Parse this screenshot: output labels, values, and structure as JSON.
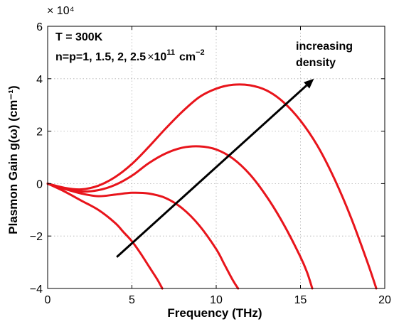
{
  "chart_data": {
    "type": "line",
    "xlabel": "Frequency (THz)",
    "ylabel": "Plasmon Gain g(ω) (cm⁻¹)",
    "y_multiplier": "× 10⁴",
    "xlim": [
      0,
      20
    ],
    "ylim": [
      -4,
      6
    ],
    "x_ticks": [
      0,
      5,
      10,
      15,
      20
    ],
    "y_ticks": [
      -4,
      -2,
      0,
      2,
      4,
      6
    ],
    "grid": true,
    "line_color": "#e8141b",
    "annotations": {
      "temperature": "T = 300K",
      "density_prefix": "n=p=1, 1.5, 2, 2.5",
      "density_times": "×",
      "density_base": "10",
      "density_exp": "11",
      "density_unit": "cm",
      "density_unit_exp": "−2",
      "arrow_label_line1": "increasing",
      "arrow_label_line2": "density",
      "arrow_from": [
        4.1,
        -2.8
      ],
      "arrow_to": [
        15.8,
        4.0
      ]
    },
    "series": [
      {
        "x": [
          0,
          1,
          2,
          3,
          4,
          4.5,
          5,
          5.5,
          6,
          6.5,
          6.8
        ],
        "y": [
          0,
          -0.3,
          -0.65,
          -1.0,
          -1.5,
          -1.85,
          -2.2,
          -2.65,
          -3.15,
          -3.65,
          -4.0
        ]
      },
      {
        "x": [
          0,
          1,
          2,
          3,
          4,
          5,
          6,
          7,
          8,
          9,
          10,
          10.5,
          11,
          11.3
        ],
        "y": [
          0,
          -0.2,
          -0.38,
          -0.48,
          -0.42,
          -0.35,
          -0.38,
          -0.55,
          -0.95,
          -1.6,
          -2.5,
          -3.1,
          -3.7,
          -4.0
        ]
      },
      {
        "x": [
          0,
          1,
          2,
          3,
          4,
          5,
          6,
          7,
          8,
          9,
          10,
          11,
          12,
          13,
          14,
          15,
          15.4,
          15.7
        ],
        "y": [
          0,
          -0.2,
          -0.3,
          -0.25,
          -0.05,
          0.3,
          0.78,
          1.15,
          1.37,
          1.42,
          1.3,
          0.95,
          0.35,
          -0.5,
          -1.55,
          -2.8,
          -3.4,
          -4.0
        ]
      },
      {
        "x": [
          0,
          1,
          2,
          3,
          4,
          5,
          6,
          7,
          8,
          9,
          10,
          11,
          12,
          13,
          14,
          15,
          16,
          17,
          18,
          19,
          19.5
        ],
        "y": [
          0,
          -0.16,
          -0.22,
          -0.08,
          0.25,
          0.75,
          1.4,
          2.1,
          2.75,
          3.3,
          3.62,
          3.77,
          3.75,
          3.55,
          3.1,
          2.4,
          1.45,
          0.2,
          -1.3,
          -3.05,
          -4.0
        ]
      }
    ]
  }
}
